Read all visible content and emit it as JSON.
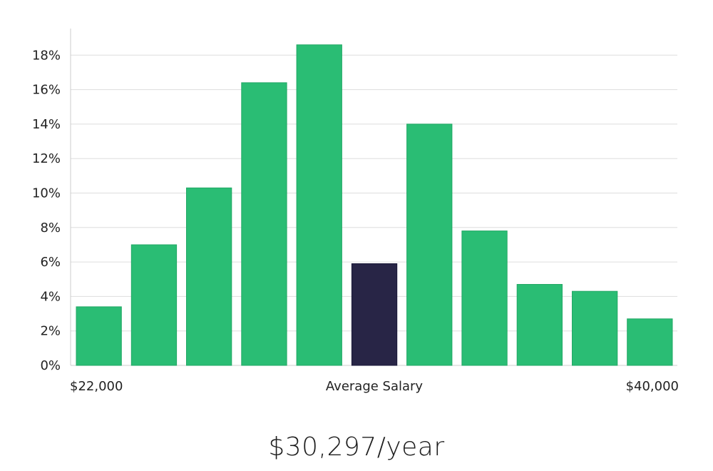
{
  "chart_data": {
    "type": "bar",
    "title": "",
    "xlabel": "Average Salary",
    "ylabel": "",
    "x_start_label": "$22,000",
    "x_end_label": "$40,000",
    "ylim": [
      0,
      19
    ],
    "yticks": [
      0,
      2,
      4,
      6,
      8,
      10,
      12,
      14,
      16,
      18
    ],
    "ytick_labels": [
      "0%",
      "2%",
      "4%",
      "6%",
      "8%",
      "10%",
      "12%",
      "14%",
      "16%",
      "18%"
    ],
    "grid": true,
    "values": [
      3.4,
      7.0,
      10.3,
      16.4,
      18.6,
      5.9,
      14.0,
      7.8,
      4.7,
      4.3,
      2.7
    ],
    "highlight_index": 5,
    "colors": {
      "bar": "#2abd74",
      "highlight": "#282546",
      "grid": "#dddddd",
      "axis": "#cccccc"
    }
  },
  "salary_label": "$30,297/year"
}
